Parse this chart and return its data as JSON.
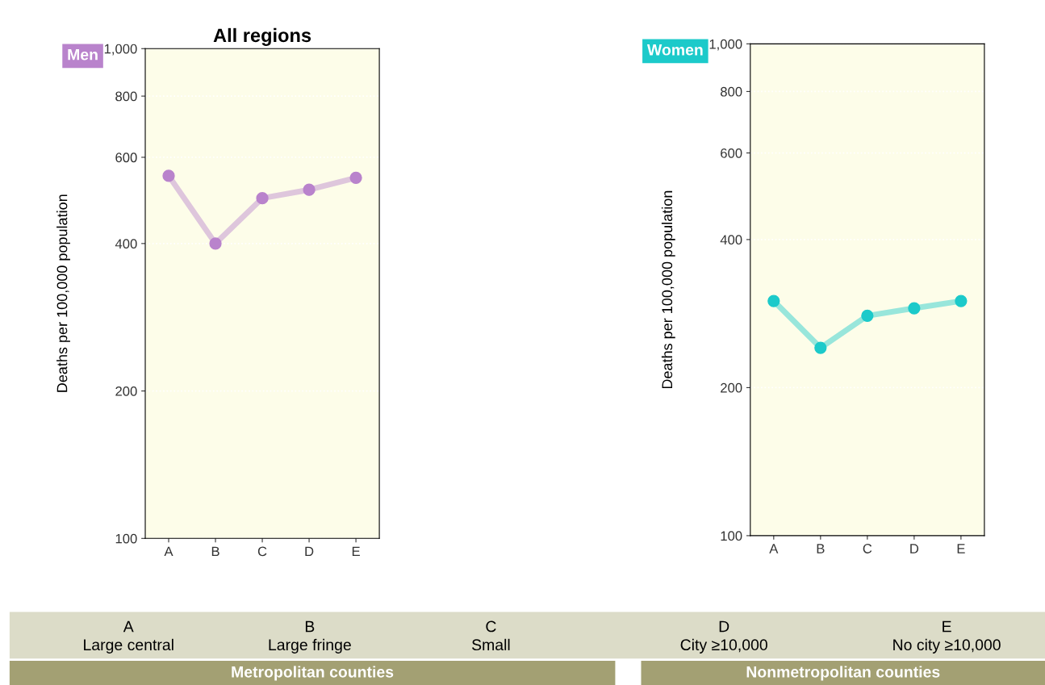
{
  "chart_data": [
    {
      "type": "line",
      "title": "All regions",
      "ylabel": "Deaths per 100,000 population",
      "categories": [
        "A",
        "B",
        "C",
        "D",
        "E"
      ],
      "log": true,
      "ylim": [
        100,
        1000
      ],
      "yticks": [
        100,
        200,
        400,
        600,
        800,
        {
          "value": 1000,
          "label": "1,000"
        }
      ],
      "grid": "y",
      "marker": "circle",
      "series": [
        {
          "name": "Men",
          "color": "#b983cc",
          "values": [
            550,
            400,
            495,
            515,
            545
          ]
        }
      ]
    },
    {
      "type": "line",
      "ylabel": "Deaths per 100,000 population",
      "categories": [
        "A",
        "B",
        "C",
        "D",
        "E"
      ],
      "log": true,
      "ylim": [
        100,
        1000
      ],
      "yticks": [
        100,
        200,
        400,
        600,
        800,
        {
          "value": 1000,
          "label": "1,000"
        }
      ],
      "grid": "y",
      "marker": "circle",
      "series": [
        {
          "name": "Women",
          "color": "#1ccaca",
          "values": [
            300,
            241,
            280,
            290,
            300
          ]
        }
      ]
    },
    {
      "type": "other",
      "annotations": [
        "A",
        "Large central",
        "B",
        "Large fringe",
        "C",
        "Small",
        "D",
        "City ≥10,000",
        "E",
        "No city ≥10,000",
        "Metropolitan counties",
        "Nonmetropolitan counties"
      ]
    }
  ]
}
